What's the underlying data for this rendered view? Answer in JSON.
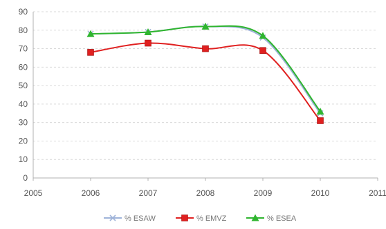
{
  "chart_data": {
    "type": "line",
    "title": "",
    "xlabel": "",
    "ylabel": "",
    "xlim": [
      2005,
      2011
    ],
    "ylim": [
      0,
      90
    ],
    "x_ticks": [
      "2005",
      "2006",
      "2007",
      "2008",
      "2009",
      "2010",
      "2011"
    ],
    "y_ticks": [
      "0",
      "10",
      "20",
      "30",
      "40",
      "50",
      "60",
      "70",
      "80",
      "90"
    ],
    "grid": true,
    "legend_position": "bottom",
    "series": [
      {
        "name": "% ESAW",
        "color": "#9fb3d9",
        "marker": "cross",
        "x": [
          2006,
          2007,
          2008,
          2009,
          2010
        ],
        "y": [
          78,
          79,
          82,
          76,
          35
        ]
      },
      {
        "name": "% EMVZ",
        "color": "#e02020",
        "marker": "square",
        "x": [
          2006,
          2007,
          2008,
          2009,
          2010
        ],
        "y": [
          68,
          73,
          70,
          69,
          31
        ]
      },
      {
        "name": "% ESEA",
        "color": "#2fb52f",
        "marker": "triangle",
        "x": [
          2006,
          2007,
          2008,
          2009,
          2010
        ],
        "y": [
          78,
          79,
          82,
          77,
          36
        ]
      }
    ]
  }
}
